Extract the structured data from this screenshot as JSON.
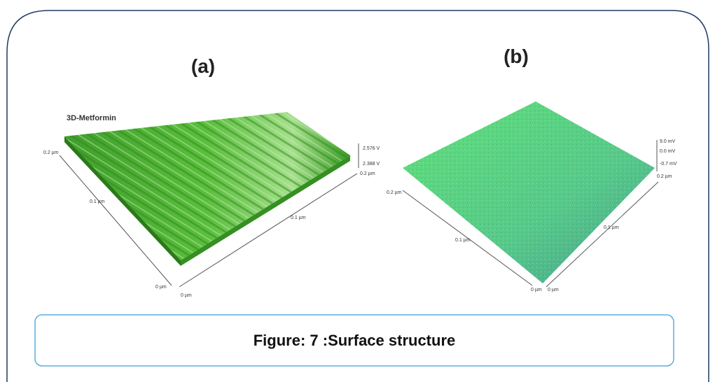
{
  "panels": [
    {
      "label": "(a)",
      "title": "3D-Metformin",
      "axis_labels": [
        "0.2 µm",
        "0.1 µm",
        "0 µm",
        "0 µm",
        "0.1 µm",
        "0.2 µm",
        "2.576 V",
        "2.388 V"
      ]
    },
    {
      "label": "(b)",
      "axis_labels": [
        "0.2 µm",
        "0.1 µm",
        "0 µm",
        "0 µm",
        "0.1 µm",
        "0.2 µm",
        "9.0 mV",
        "0.0 mV",
        "-0.7 mV"
      ]
    }
  ],
  "caption": "Figure: 7 :Surface structure"
}
